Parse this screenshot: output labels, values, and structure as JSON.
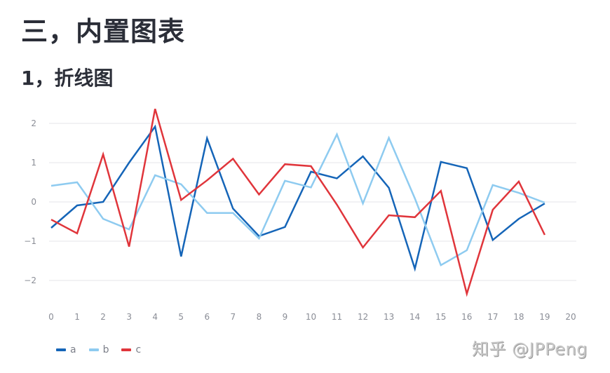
{
  "page": {
    "section_title": "三，内置图表",
    "subsection_title": "1，折线图",
    "watermark": "知乎 @JPPeng"
  },
  "legend": [
    {
      "label": "a",
      "color": "#1565b8"
    },
    {
      "label": "b",
      "color": "#8ecbf0"
    },
    {
      "label": "c",
      "color": "#e0353b"
    }
  ],
  "chart_data": {
    "type": "line",
    "title": "",
    "xlabel": "",
    "ylabel": "",
    "x": [
      0,
      1,
      2,
      3,
      4,
      5,
      6,
      7,
      8,
      9,
      10,
      11,
      12,
      13,
      14,
      15,
      16,
      17,
      18,
      19
    ],
    "x_ticks": [
      "0",
      "1",
      "2",
      "3",
      "4",
      "5",
      "6",
      "7",
      "8",
      "9",
      "10",
      "11",
      "12",
      "13",
      "14",
      "15",
      "16",
      "17",
      "18",
      "19",
      "20"
    ],
    "y_ticks": [
      "2",
      "1",
      "0",
      "−1",
      "−2"
    ],
    "xlim": [
      0,
      20
    ],
    "ylim": [
      -2.6,
      2.4
    ],
    "grid": "horizontal",
    "legend_position": "bottom-left",
    "series": [
      {
        "name": "a",
        "color": "#1565b8",
        "values": [
          -0.66,
          -0.09,
          0.0,
          1.0,
          1.92,
          -1.39,
          1.62,
          -0.17,
          -0.87,
          -0.64,
          0.77,
          0.6,
          1.16,
          0.36,
          -1.7,
          1.02,
          0.86,
          -0.97,
          -0.43,
          -0.04
        ]
      },
      {
        "name": "b",
        "color": "#8ecbf0",
        "values": [
          0.41,
          0.5,
          -0.43,
          -0.7,
          0.68,
          0.45,
          -0.28,
          -0.28,
          -0.93,
          0.54,
          0.37,
          1.72,
          -0.04,
          1.63,
          0.09,
          -1.61,
          -1.23,
          0.43,
          0.23,
          -0.02
        ]
      },
      {
        "name": "c",
        "color": "#e0353b",
        "values": [
          -0.45,
          -0.8,
          1.21,
          -1.14,
          2.37,
          0.05,
          0.55,
          1.1,
          0.19,
          0.96,
          0.91,
          -0.07,
          -1.16,
          -0.34,
          -0.39,
          0.28,
          -2.34,
          -0.2,
          0.52,
          -0.84
        ]
      }
    ]
  }
}
